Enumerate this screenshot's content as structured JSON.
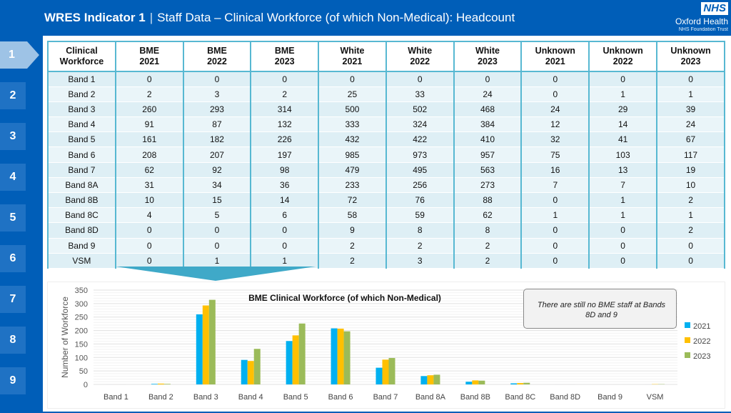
{
  "header": {
    "title_bold": "WRES Indicator 1",
    "separator": "|",
    "title_rest": "Staff Data – Clinical Workforce (of which Non-Medical): Headcount"
  },
  "logo": {
    "nhs": "NHS",
    "org": "Oxford Health",
    "trust": "NHS Foundation Trust"
  },
  "sidebar": {
    "tabs": [
      "1",
      "2",
      "3",
      "4",
      "5",
      "6",
      "7",
      "8",
      "9"
    ],
    "active": "1"
  },
  "table": {
    "headers": [
      [
        "Clinical",
        "Workforce"
      ],
      [
        "BME",
        "2021"
      ],
      [
        "BME",
        "2022"
      ],
      [
        "BME",
        "2023"
      ],
      [
        "White",
        "2021"
      ],
      [
        "White",
        "2022"
      ],
      [
        "White",
        "2023"
      ],
      [
        "Unknown",
        "2021"
      ],
      [
        "Unknown",
        "2022"
      ],
      [
        "Unknown",
        "2023"
      ]
    ],
    "rows": [
      [
        "Band 1",
        "0",
        "0",
        "0",
        "0",
        "0",
        "0",
        "0",
        "0",
        "0"
      ],
      [
        "Band 2",
        "2",
        "3",
        "2",
        "25",
        "33",
        "24",
        "0",
        "1",
        "1"
      ],
      [
        "Band 3",
        "260",
        "293",
        "314",
        "500",
        "502",
        "468",
        "24",
        "29",
        "39"
      ],
      [
        "Band 4",
        "91",
        "87",
        "132",
        "333",
        "324",
        "384",
        "12",
        "14",
        "24"
      ],
      [
        "Band 5",
        "161",
        "182",
        "226",
        "432",
        "422",
        "410",
        "32",
        "41",
        "67"
      ],
      [
        "Band 6",
        "208",
        "207",
        "197",
        "985",
        "973",
        "957",
        "75",
        "103",
        "117"
      ],
      [
        "Band 7",
        "62",
        "92",
        "98",
        "479",
        "495",
        "563",
        "16",
        "13",
        "19"
      ],
      [
        "Band 8A",
        "31",
        "34",
        "36",
        "233",
        "256",
        "273",
        "7",
        "7",
        "10"
      ],
      [
        "Band 8B",
        "10",
        "15",
        "14",
        "72",
        "76",
        "88",
        "0",
        "1",
        "2"
      ],
      [
        "Band 8C",
        "4",
        "5",
        "6",
        "58",
        "59",
        "62",
        "1",
        "1",
        "1"
      ],
      [
        "Band 8D",
        "0",
        "0",
        "0",
        "9",
        "8",
        "8",
        "0",
        "0",
        "2"
      ],
      [
        "Band 9",
        "0",
        "0",
        "0",
        "2",
        "2",
        "2",
        "0",
        "0",
        "0"
      ],
      [
        "VSM",
        "0",
        "1",
        "1",
        "2",
        "3",
        "2",
        "0",
        "0",
        "0"
      ]
    ]
  },
  "note": "There are still no BME staff at Bands 8D and 9",
  "chart_data": {
    "type": "bar",
    "title": "BME Clinical Workforce (of which Non-Medical)",
    "xlabel": "",
    "ylabel": "Number of Workforce",
    "ylim": [
      0,
      350
    ],
    "yticks": [
      0,
      50,
      100,
      150,
      200,
      250,
      300,
      350
    ],
    "grid": true,
    "legend": "right",
    "categories": [
      "Band 1",
      "Band 2",
      "Band 3",
      "Band 4",
      "Band 5",
      "Band 6",
      "Band 7",
      "Band 8A",
      "Band 8B",
      "Band 8C",
      "Band 8D",
      "Band 9",
      "VSM"
    ],
    "series": [
      {
        "name": "2021",
        "color": "#00B0F0",
        "values": [
          0,
          2,
          260,
          91,
          161,
          208,
          62,
          31,
          10,
          4,
          0,
          0,
          0
        ]
      },
      {
        "name": "2022",
        "color": "#FFC000",
        "values": [
          0,
          3,
          293,
          87,
          182,
          207,
          92,
          34,
          15,
          5,
          0,
          0,
          1
        ]
      },
      {
        "name": "2023",
        "color": "#9BBB59",
        "values": [
          0,
          2,
          314,
          132,
          226,
          197,
          98,
          36,
          14,
          6,
          0,
          0,
          1
        ]
      }
    ]
  }
}
